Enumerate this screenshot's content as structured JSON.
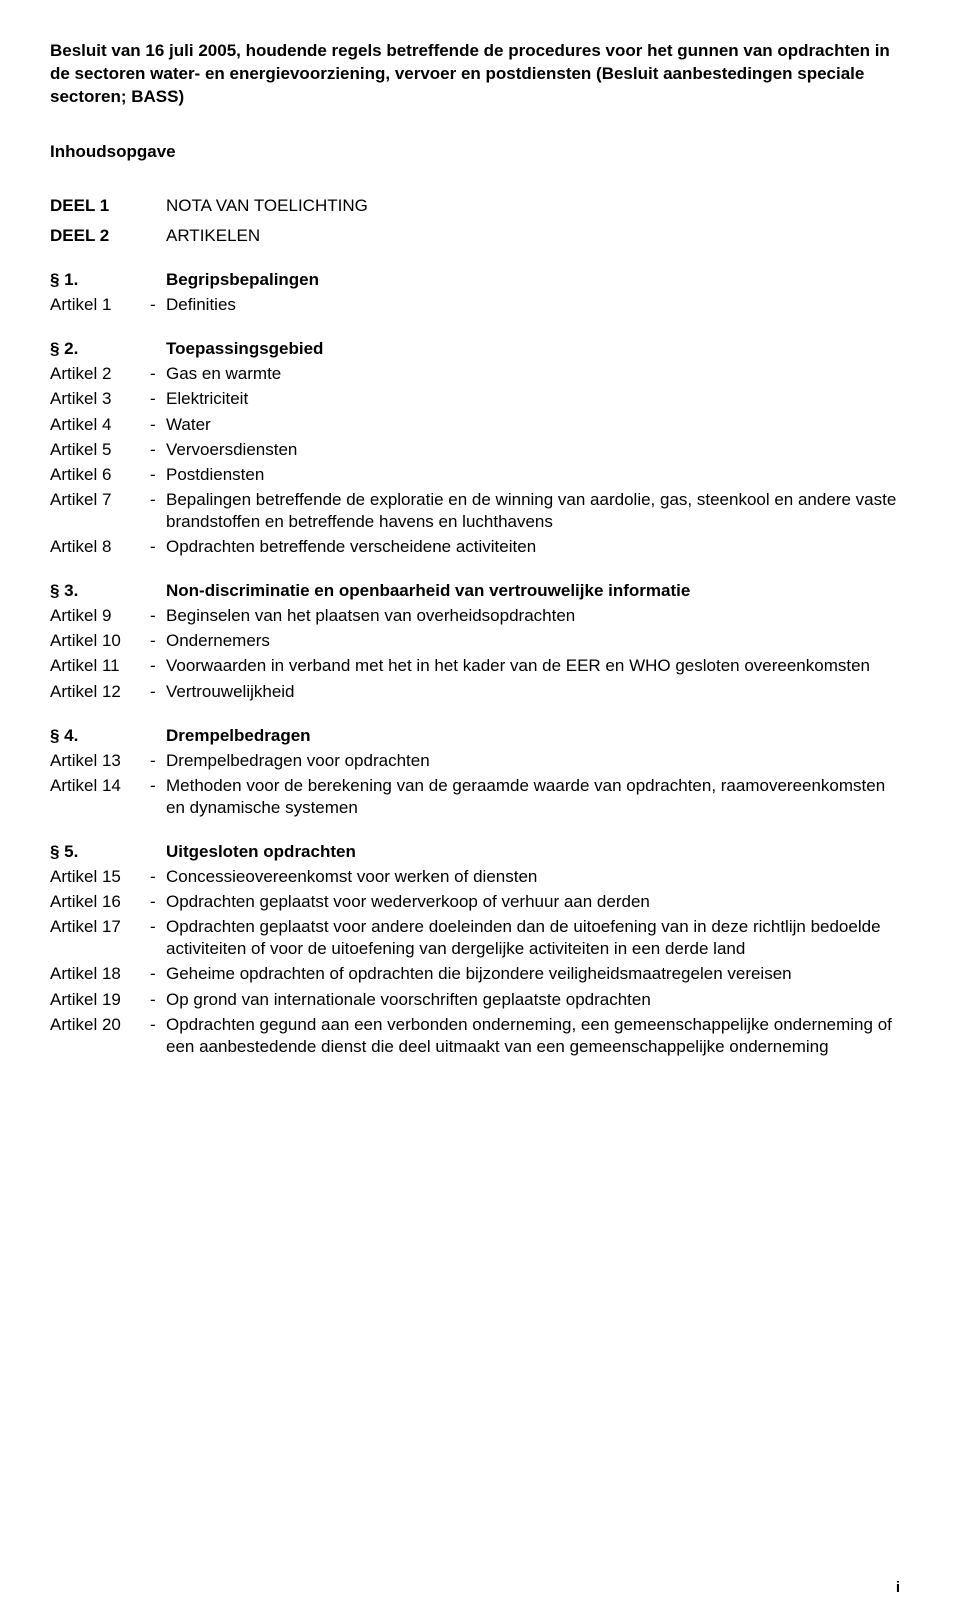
{
  "title": "Besluit van 16 juli 2005, houdende regels betreffende de procedures voor het gunnen van opdrachten in de sectoren water- en energievoorziening, vervoer en postdiensten (Besluit aanbestedingen speciale sectoren; BASS)",
  "subtitle": "Inhoudsopgave",
  "deel1_label": "DEEL 1",
  "deel1_text": "NOTA VAN TOELICHTING",
  "deel2_label": "DEEL 2",
  "deel2_text": "ARTIKELEN",
  "sections": [
    {
      "num": "§ 1.",
      "title": "Begripsbepalingen",
      "articles": [
        {
          "num": "Artikel 1",
          "text": "Definities"
        }
      ]
    },
    {
      "num": "§ 2.",
      "title": "Toepassingsgebied",
      "articles": [
        {
          "num": "Artikel 2",
          "text": "Gas en warmte"
        },
        {
          "num": "Artikel 3",
          "text": "Elektriciteit"
        },
        {
          "num": "Artikel 4",
          "text": "Water"
        },
        {
          "num": "Artikel 5",
          "text": "Vervoersdiensten"
        },
        {
          "num": "Artikel 6",
          "text": "Postdiensten"
        },
        {
          "num": "Artikel 7",
          "text": "Bepalingen betreffende de exploratie en de winning van aardolie, gas, steenkool en andere vaste brandstoffen en betreffende havens en luchthavens"
        },
        {
          "num": "Artikel 8",
          "text": "Opdrachten betreffende verscheidene activiteiten"
        }
      ]
    },
    {
      "num": "§ 3.",
      "title": "Non-discriminatie en openbaarheid van vertrouwelijke informatie",
      "articles": [
        {
          "num": "Artikel 9",
          "text": "Beginselen van het plaatsen van overheidsopdrachten"
        },
        {
          "num": "Artikel 10",
          "text": "Ondernemers"
        },
        {
          "num": "Artikel 11",
          "text": "Voorwaarden in verband met het in het kader van de EER en WHO gesloten overeenkomsten"
        },
        {
          "num": "Artikel 12",
          "text": "Vertrouwelijkheid"
        }
      ]
    },
    {
      "num": "§ 4.",
      "title": "Drempelbedragen",
      "articles": [
        {
          "num": "Artikel 13",
          "text": "Drempelbedragen voor opdrachten"
        },
        {
          "num": "Artikel 14",
          "text": "Methoden voor de berekening van de geraamde waarde van opdrachten, raamovereenkomsten en dynamische systemen"
        }
      ]
    },
    {
      "num": "§ 5.",
      "title": "Uitgesloten opdrachten",
      "articles": [
        {
          "num": "Artikel 15",
          "text": "Concessieovereenkomst voor werken of diensten"
        },
        {
          "num": "Artikel 16",
          "text": "Opdrachten geplaatst voor wederverkoop of verhuur aan derden"
        },
        {
          "num": "Artikel 17",
          "text": "Opdrachten geplaatst voor andere doeleinden dan de uitoefening van in deze richtlijn bedoelde activiteiten of voor de uitoefening van dergelijke activiteiten in een derde land"
        },
        {
          "num": "Artikel 18",
          "text": "Geheime opdrachten of opdrachten die bijzondere veiligheidsmaatregelen vereisen"
        },
        {
          "num": "Artikel 19",
          "text": "Op grond van internationale voorschriften geplaatste opdrachten"
        },
        {
          "num": "Artikel 20",
          "text": "Opdrachten gegund aan een verbonden onderneming, een gemeen­schappelijke onderneming of een aanbestedende dienst die deel uitmaakt van een gemeenschappelijke onderneming"
        }
      ]
    }
  ],
  "page_num": "i"
}
